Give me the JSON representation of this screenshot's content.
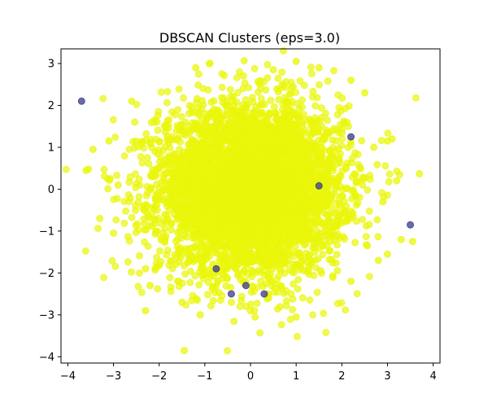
{
  "chart_data": {
    "type": "scatter",
    "title": "DBSCAN Clusters (eps=3.0)",
    "xlabel": "",
    "ylabel": "",
    "xlim": [
      -4.15,
      4.15
    ],
    "ylim": [
      -4.15,
      3.35
    ],
    "xticks": [
      -4,
      -3,
      -2,
      -1,
      0,
      1,
      2,
      3,
      4
    ],
    "yticks": [
      -4,
      -3,
      -2,
      -1,
      0,
      1,
      2,
      3
    ],
    "grid": false,
    "legend": "none",
    "colors": {
      "core": "#e9f70a",
      "noise": "#3a3a8c",
      "frame": "#000000"
    },
    "main_cluster": {
      "label": 0,
      "approx_count": 5000,
      "center": [
        0,
        0
      ],
      "std": [
        1.0,
        1.0
      ]
    },
    "series": [
      {
        "label": -1,
        "points": [
          [
            -3.7,
            2.1
          ],
          [
            3.5,
            -0.85
          ],
          [
            -0.75,
            -1.9
          ],
          [
            -0.42,
            -2.5
          ],
          [
            0.3,
            -2.5
          ],
          [
            1.5,
            0.08
          ],
          [
            2.2,
            1.25
          ],
          [
            -0.1,
            -2.3
          ]
        ]
      },
      {
        "label": 0,
        "points": [
          [
            -3.55,
            0.48
          ],
          [
            -3.45,
            0.95
          ],
          [
            -3.6,
            0.45
          ],
          [
            -3.1,
            1.15
          ],
          [
            -3.3,
            -0.7
          ],
          [
            -3.0,
            -1.05
          ],
          [
            3.7,
            0.37
          ],
          [
            3.55,
            -1.25
          ],
          [
            3.3,
            -1.2
          ],
          [
            3.0,
            1.15
          ],
          [
            3.1,
            1.2
          ],
          [
            3.0,
            -1.55
          ],
          [
            -1.45,
            -3.85
          ],
          [
            -2.3,
            -2.9
          ],
          [
            -2.6,
            2.1
          ],
          [
            -0.9,
            3.0
          ],
          [
            1.0,
            3.05
          ],
          [
            1.5,
            2.9
          ],
          [
            2.5,
            2.3
          ],
          [
            2.2,
            2.6
          ],
          [
            -2.3,
            -1.9
          ],
          [
            -2.2,
            -2.3
          ],
          [
            2.8,
            -1.7
          ],
          [
            3.2,
            0.2
          ],
          [
            1.0,
            -3.05
          ],
          [
            0.1,
            -3.05
          ],
          [
            -1.1,
            -3.0
          ],
          [
            2.2,
            -2.2
          ],
          [
            -1.2,
            2.9
          ],
          [
            0.5,
            2.85
          ],
          [
            -2.1,
            1.6
          ],
          [
            2.7,
            1.0
          ],
          [
            -2.9,
            0.1
          ],
          [
            2.9,
            -0.3
          ],
          [
            0.0,
            -2.9
          ],
          [
            -1.5,
            -2.7
          ]
        ]
      }
    ]
  }
}
